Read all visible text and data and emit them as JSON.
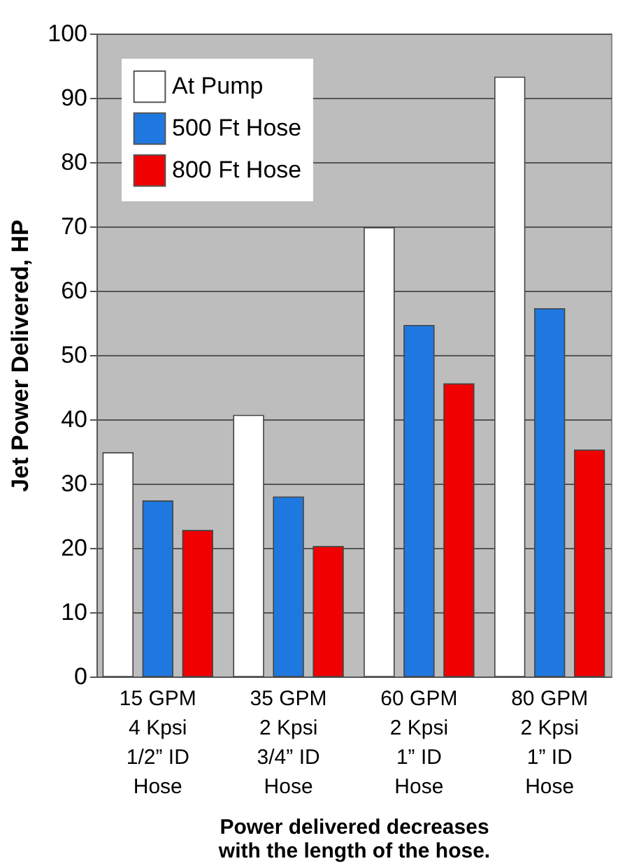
{
  "chart_data": {
    "type": "bar",
    "categories": [
      "15 GPM\n4 Kpsi\n1/2” ID\nHose",
      "35 GPM\n2 Kpsi\n3/4” ID\nHose",
      "60 GPM\n2 Kpsi\n1” ID\nHose",
      "80 GPM\n2 Kpsi\n1” ID\nHose"
    ],
    "series": [
      {
        "name": "At Pump",
        "color": "#ffffff",
        "values": [
          34.8,
          40.6,
          69.8,
          93.2
        ]
      },
      {
        "name": "500 Ft Hose",
        "color": "#1f78e0",
        "values": [
          27.3,
          27.9,
          54.6,
          57.2
        ]
      },
      {
        "name": "800 Ft Hose",
        "color": "#f00000",
        "values": [
          22.7,
          20.2,
          45.5,
          35.2
        ]
      }
    ],
    "xlabel": "Power delivered decreases\nwith the length of the hose.",
    "ylabel": "Jet Power Delivered, HP",
    "ylim": [
      0,
      100
    ],
    "yticks": [
      0,
      10,
      20,
      30,
      40,
      50,
      60,
      70,
      80,
      90,
      100
    ],
    "grid": "y",
    "legend": "top left"
  }
}
